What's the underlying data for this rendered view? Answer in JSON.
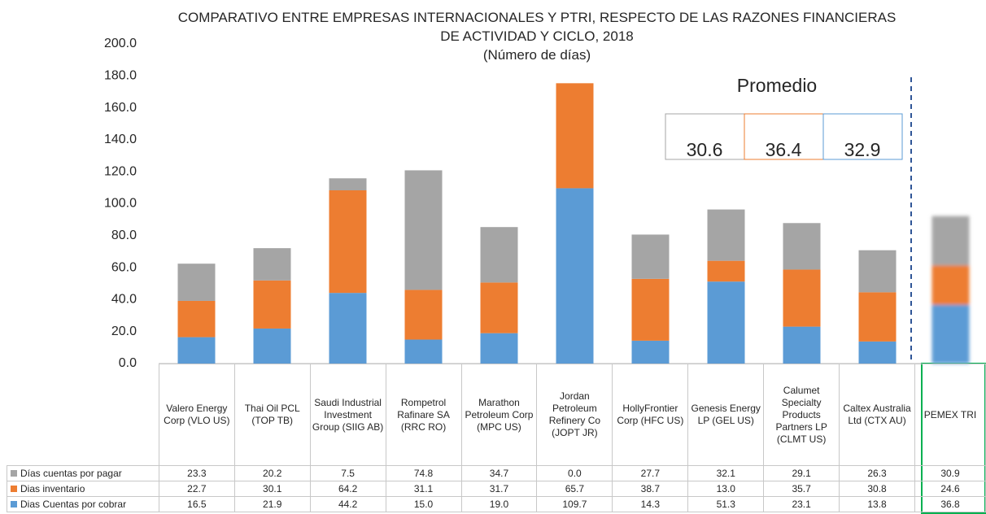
{
  "chart_data": {
    "type": "stacked_bar",
    "title": "COMPARATIVO ENTRE EMPRESAS INTERNACIONALES Y PTRI, RESPECTO DE LAS RAZONES FINANCIERAS DE ACTIVIDAD Y CICLO, 2018",
    "subtitle": "(Número de días)",
    "categories": [
      "Valero Energy Corp (VLO US)",
      "Thai Oil PCL (TOP TB)",
      "Saudi Industrial Investment Group (SIIG AB)",
      "Rompetrol Rafinare SA (RRC RO)",
      "Marathon Petroleum Corp (MPC US)",
      "Jordan Petroleum Refinery Co (JOPT JR)",
      "HollyFrontier Corp (HFC US)",
      "Genesis Energy LP (GEL US)",
      "Calumet Specialty Products Partners LP (CLMT US)",
      "Caltex Australia Ltd (CTX AU)",
      "PEMEX TRI"
    ],
    "series": [
      {
        "name": "Dias Cuentas por cobrar",
        "color": "#5b9bd5",
        "values": [
          16.5,
          21.9,
          44.2,
          15.0,
          19.0,
          109.7,
          14.3,
          51.3,
          23.1,
          13.8,
          36.8
        ],
        "value_labels": [
          "16.5",
          "21.9",
          "44.2",
          "15.0",
          "19.0",
          "109.7",
          "14.3",
          "51.3",
          "23.1",
          "13.8",
          "36.8"
        ]
      },
      {
        "name": "Dias inventario",
        "color": "#ed7d31",
        "values": [
          22.7,
          30.1,
          64.2,
          31.1,
          31.7,
          65.7,
          38.7,
          13.0,
          35.7,
          30.8,
          24.6
        ],
        "value_labels": [
          "22.7",
          "30.1",
          "64.2",
          "31.1",
          "31.7",
          "65.7",
          "38.7",
          "13.0",
          "35.7",
          "30.8",
          "24.6"
        ]
      },
      {
        "name": "Días cuentas por pagar",
        "color": "#a5a5a5",
        "values": [
          23.3,
          20.2,
          7.5,
          74.8,
          34.7,
          0.0,
          27.7,
          32.1,
          29.1,
          26.3,
          30.9
        ],
        "value_labels": [
          "23.3",
          "20.2",
          "7.5",
          "74.8",
          "34.7",
          "0.0",
          "27.7",
          "32.1",
          "29.1",
          "26.3",
          "30.9"
        ]
      }
    ],
    "ylim": [
      0,
      200
    ],
    "yticks": [
      {
        "value": 0,
        "label": "0.0"
      },
      {
        "value": 20,
        "label": "20.0"
      },
      {
        "value": 40,
        "label": "40.0"
      },
      {
        "value": 60,
        "label": "60.0"
      },
      {
        "value": 80,
        "label": "80.0"
      },
      {
        "value": 100,
        "label": "100.0"
      },
      {
        "value": 120,
        "label": "120.0"
      },
      {
        "value": 140,
        "label": "140.0"
      },
      {
        "value": 160,
        "label": "160.0"
      },
      {
        "value": 180,
        "label": "180.0"
      },
      {
        "value": 200,
        "label": "200.0"
      }
    ],
    "grid": false,
    "average_box": {
      "label": "Promedio",
      "values": [
        "30.6",
        "36.4",
        "32.9"
      ],
      "colors": [
        "#a5a5a5",
        "#ed7d31",
        "#5b9bd5"
      ]
    }
  }
}
